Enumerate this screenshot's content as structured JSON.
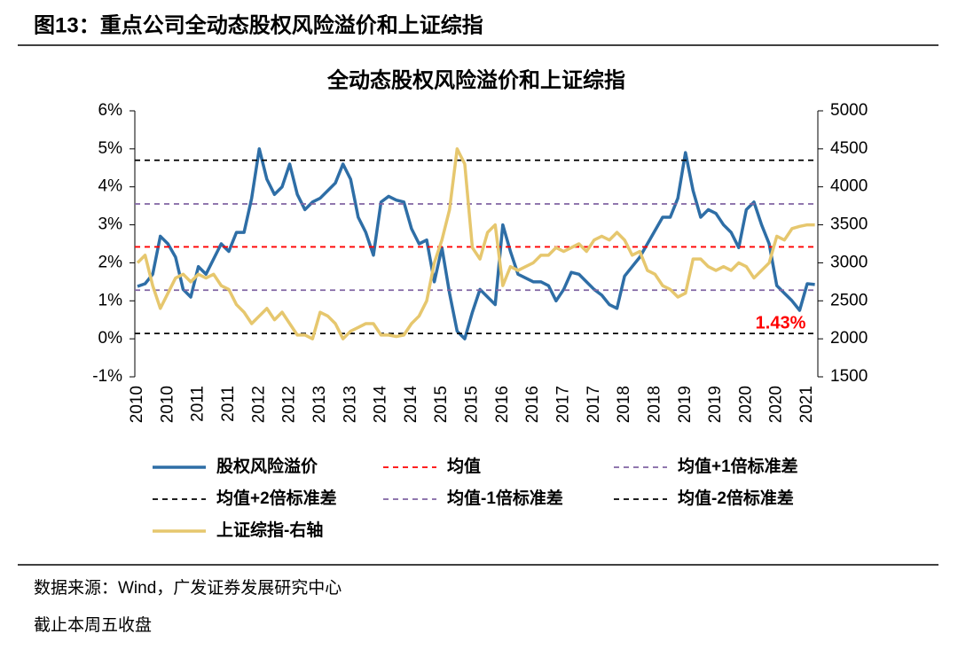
{
  "header": "图13：重点公司全动态股权风险溢价和上证综指",
  "source": "数据来源：Wind，广发证券发展研究中心",
  "note": "截止本周五收盘",
  "chart_data": {
    "type": "line",
    "title": "全动态股权风险溢价和上证综指",
    "annotation": "1.43%",
    "categories": [
      "2010",
      null,
      null,
      null,
      "2010",
      null,
      null,
      null,
      "2011",
      null,
      null,
      null,
      "2011",
      null,
      null,
      null,
      "2012",
      null,
      null,
      null,
      "2012",
      null,
      null,
      null,
      "2013",
      null,
      null,
      null,
      "2013",
      null,
      null,
      null,
      "2014",
      null,
      null,
      null,
      "2014",
      null,
      null,
      null,
      "2015",
      null,
      null,
      null,
      "2015",
      null,
      null,
      null,
      "2016",
      null,
      null,
      null,
      "2016",
      null,
      null,
      null,
      "2017",
      null,
      null,
      null,
      "2017",
      null,
      null,
      null,
      "2018",
      null,
      null,
      null,
      "2018",
      null,
      null,
      null,
      "2019",
      null,
      null,
      null,
      "2019",
      null,
      null,
      null,
      "2020",
      null,
      null,
      null,
      "2020",
      null,
      null,
      null,
      "2021",
      null
    ],
    "series": [
      {
        "name": "股权风险溢价",
        "color": "#2e6ea6",
        "values": [
          1.38,
          1.45,
          1.7,
          2.7,
          2.5,
          2.15,
          1.3,
          1.1,
          1.9,
          1.7,
          2.1,
          2.5,
          2.3,
          2.8,
          2.8,
          3.7,
          5.0,
          4.2,
          3.8,
          4.0,
          4.6,
          3.8,
          3.4,
          3.6,
          3.7,
          3.9,
          4.1,
          4.6,
          4.2,
          3.2,
          2.8,
          2.2,
          3.6,
          3.75,
          3.65,
          3.6,
          2.9,
          2.5,
          2.6,
          1.5,
          2.4,
          1.2,
          0.2,
          0.0,
          0.7,
          1.3,
          1.1,
          0.9,
          3.0,
          2.3,
          1.7,
          1.6,
          1.5,
          1.5,
          1.4,
          1.0,
          1.3,
          1.75,
          1.7,
          1.5,
          1.3,
          1.15,
          0.9,
          0.8,
          1.65,
          1.9,
          2.15,
          2.5,
          2.85,
          3.2,
          3.2,
          3.7,
          4.9,
          3.9,
          3.2,
          3.4,
          3.3,
          3.0,
          2.8,
          2.4,
          3.4,
          3.6,
          3.0,
          2.5,
          1.4,
          1.2,
          1.0,
          0.75,
          1.45,
          1.43
        ]
      },
      {
        "name": "均值",
        "color": "#ff0000",
        "value": 2.42
      },
      {
        "name": "均值+1倍标准差",
        "color": "#8064a2",
        "value": 3.55
      },
      {
        "name": "均值+2倍标准差",
        "color": "#000000",
        "value": 4.7
      },
      {
        "name": "均值-1倍标准差",
        "color": "#8064a2",
        "value": 1.28
      },
      {
        "name": "均值-2倍标准差",
        "color": "#000000",
        "value": 0.14
      },
      {
        "name": "上证综指-右轴",
        "color": "#e6c76e",
        "axis": "y2",
        "values": [
          3000,
          3100,
          2700,
          2400,
          2600,
          2800,
          2850,
          2750,
          2850,
          2800,
          2850,
          2700,
          2650,
          2450,
          2350,
          2200,
          2300,
          2400,
          2250,
          2350,
          2200,
          2050,
          2050,
          2000,
          2350,
          2300,
          2200,
          2000,
          2100,
          2150,
          2200,
          2200,
          2050,
          2050,
          2030,
          2050,
          2200,
          2300,
          2500,
          3000,
          3300,
          3700,
          4500,
          4300,
          3200,
          3050,
          3400,
          3500,
          2700,
          2950,
          2900,
          2950,
          3000,
          3100,
          3100,
          3200,
          3150,
          3200,
          3250,
          3150,
          3300,
          3350,
          3300,
          3400,
          3300,
          3100,
          3150,
          2900,
          2850,
          2700,
          2650,
          2550,
          2600,
          3050,
          3050,
          2950,
          2900,
          2950,
          2900,
          3000,
          2950,
          2800,
          2900,
          3000,
          3350,
          3300,
          3450,
          3480,
          3500,
          3500
        ]
      }
    ],
    "ylim": [
      -1,
      6
    ],
    "yticks": [
      {
        "value": -1,
        "label": "-1%"
      },
      {
        "value": 0,
        "label": "0%"
      },
      {
        "value": 1,
        "label": "1%"
      },
      {
        "value": 2,
        "label": "2%"
      },
      {
        "value": 3,
        "label": "3%"
      },
      {
        "value": 4,
        "label": "4%"
      },
      {
        "value": 5,
        "label": "5%"
      },
      {
        "value": 6,
        "label": "6%"
      }
    ],
    "y2lim": [
      1500,
      5000
    ],
    "y2ticks": [
      1500,
      2000,
      2500,
      3000,
      3500,
      4000,
      4500,
      5000
    ]
  }
}
